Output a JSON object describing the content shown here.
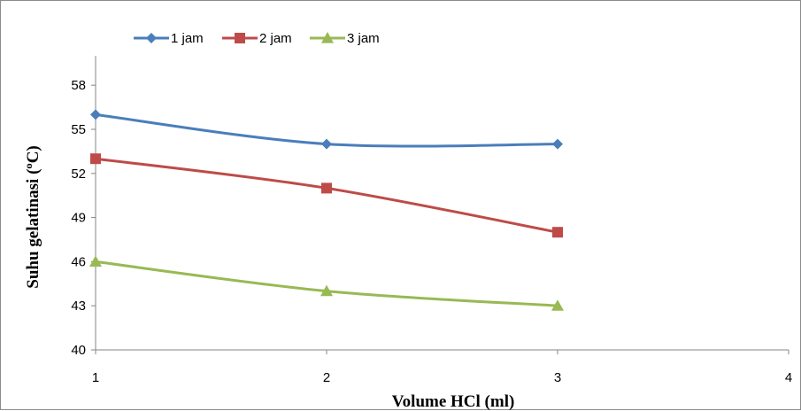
{
  "chart_data": {
    "type": "line",
    "title": "",
    "xlabel": "Volume HCl (ml)",
    "ylabel": "Suhu gelatinasi (ºC)",
    "x": [
      1,
      2,
      3
    ],
    "xlim": [
      1,
      4
    ],
    "xticks": [
      1,
      2,
      3,
      4
    ],
    "ylim": [
      40,
      60
    ],
    "yticks": [
      40,
      43,
      46,
      49,
      52,
      55,
      58
    ],
    "grid": false,
    "legend_position": "top-left",
    "series": [
      {
        "name": "1 jam",
        "values": [
          56,
          54,
          54
        ],
        "color": "#4a7ebb",
        "marker": "diamond"
      },
      {
        "name": "2 jam",
        "values": [
          53,
          51,
          48
        ],
        "color": "#be4b48",
        "marker": "square"
      },
      {
        "name": "3 jam",
        "values": [
          46,
          44,
          43
        ],
        "color": "#98b954",
        "marker": "triangle"
      }
    ]
  }
}
